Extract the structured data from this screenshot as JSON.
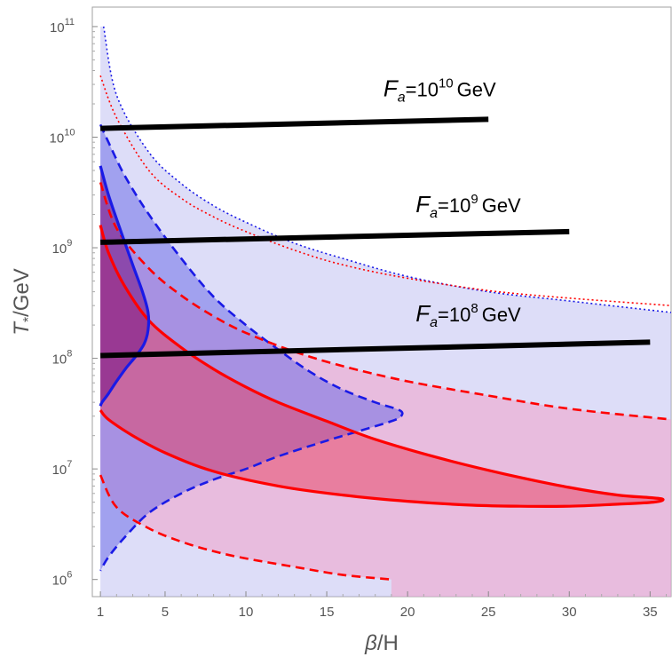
{
  "chart_data": {
    "type": "area",
    "title": "",
    "xlabel": "β/H",
    "ylabel": "T*/GeV",
    "xlim": [
      0.5,
      36.3
    ],
    "ylim": [
      700000,
      150000000000
    ],
    "yscale": "log",
    "grid": false,
    "x_ticks": [
      1,
      5,
      10,
      15,
      20,
      25,
      30,
      35
    ],
    "y_ticks": [
      {
        "value": 1000000,
        "base": "10",
        "exp": "6"
      },
      {
        "value": 10000000,
        "base": "10",
        "exp": "7"
      },
      {
        "value": 100000000,
        "base": "10",
        "exp": "8"
      },
      {
        "value": 1000000000,
        "base": "10",
        "exp": "9"
      },
      {
        "value": 10000000000,
        "base": "10",
        "exp": "10"
      },
      {
        "value": 100000000000,
        "base": "10",
        "exp": "11"
      }
    ],
    "axis_label_parts": {
      "x": {
        "symbol": "β",
        "rest": "/H"
      },
      "y": {
        "symbol": "T",
        "sub": "*",
        "rest": "/GeV"
      }
    },
    "colors": {
      "blue": "#1a1ae6",
      "red": "#ff0000",
      "black": "#000000",
      "region_light_blue": "#b4b4f0",
      "region_light_red": "#f0a0c8",
      "region_mid_blue": "#6666e6",
      "region_mid_red": "#e84060",
      "region_overlap": "#7a1a8a"
    },
    "lines": [
      {
        "name": "blue-dotted",
        "color": "#1a1ae6",
        "style": "dotted",
        "x": [
          1.2,
          2,
          4,
          6,
          8,
          10,
          13,
          16,
          20,
          25,
          30,
          36.3
        ],
        "y": [
          100000000000.0,
          24000000000.0,
          7300000000.0,
          3800000000.0,
          2400000000.0,
          1700000000.0,
          1100000000.0,
          800000000.0,
          550000000.0,
          400000000.0,
          330000000.0,
          260000000.0
        ]
      },
      {
        "name": "red-dotted",
        "color": "#ff0000",
        "style": "dotted",
        "x": [
          1,
          2,
          4,
          6,
          8,
          10,
          13,
          16,
          20,
          25,
          30,
          36.3
        ],
        "y": [
          36000000000.0,
          15000000000.0,
          5000000000.0,
          2800000000.0,
          1900000000.0,
          1400000000.0,
          950000000.0,
          700000000.0,
          530000000.0,
          410000000.0,
          350000000.0,
          300000000.0
        ]
      },
      {
        "name": "blue-dashed",
        "color": "#1a1ae6",
        "style": "dashed",
        "x": [
          1,
          1.5,
          2.5,
          4,
          6,
          8,
          10,
          12,
          14,
          16,
          18,
          19.5,
          19.6,
          19,
          17,
          15,
          12,
          10,
          8,
          6,
          4,
          2.5,
          1.5,
          1
        ],
        "y": [
          13000000000.0,
          9000000000.0,
          4500000000.0,
          2000000000.0,
          800000000.0,
          360000000.0,
          200000000.0,
          120000000.0,
          75000000.0,
          52000000.0,
          40000000.0,
          34000000.0,
          30000000.0,
          27000000.0,
          22000000.0,
          18000000.0,
          13000000.0,
          10000000.0,
          8000000.0,
          6000000.0,
          4000000.0,
          2400000.0,
          1600000.0,
          1200000.0
        ]
      },
      {
        "name": "red-dashed-upper",
        "color": "#ff0000",
        "style": "dashed",
        "x": [
          1,
          2,
          4,
          6,
          8,
          10,
          13,
          16,
          20,
          25,
          30,
          36.3
        ],
        "y": [
          3900000000.0,
          1500000000.0,
          650000000.0,
          370000000.0,
          240000000.0,
          170000000.0,
          115000000.0,
          85000000.0,
          62000000.0,
          46000000.0,
          35000000.0,
          28000000.0
        ]
      },
      {
        "name": "red-dashed-lower",
        "color": "#ff0000",
        "style": "dashed",
        "x": [
          1,
          2,
          4,
          6,
          8,
          10,
          13,
          16,
          19
        ],
        "y": [
          8800000.0,
          4500000.0,
          2900000.0,
          2200000.0,
          1800000.0,
          1550000.0,
          1300000.0,
          1100000.0,
          1000000.0
        ]
      },
      {
        "name": "red-solid",
        "color": "#ff0000",
        "style": "solid",
        "x": [
          1,
          1.5,
          2.5,
          4,
          6,
          8,
          10,
          12,
          15,
          18,
          22,
          26,
          30,
          33,
          35,
          35.8,
          35.2,
          33,
          30,
          27,
          24,
          20,
          16,
          12,
          8,
          5,
          3,
          1.5,
          1
        ],
        "y": [
          1600000000.0,
          900000000.0,
          450000000.0,
          220000000.0,
          125000000.0,
          80000000.0,
          55000000.0,
          40000000.0,
          27000000.0,
          18500000.0,
          12500000.0,
          9000000.0,
          6800000.0,
          5800000.0,
          5500000.0,
          5300000.0,
          5000000.0,
          4800000.0,
          4600000.0,
          4600000.0,
          4700000.0,
          5100000.0,
          5800000.0,
          7000000.0,
          9500000.0,
          14000000.0,
          20000000.0,
          28000000.0,
          34000000.0
        ]
      },
      {
        "name": "blue-solid",
        "color": "#1a1ae6",
        "style": "solid",
        "x": [
          1,
          1.5,
          2.2,
          3,
          3.6,
          3.95,
          3.95,
          3.7,
          3.2,
          2.6,
          2.0,
          1.5,
          1.1,
          1
        ],
        "y": [
          5500000000.0,
          3000000000.0,
          1500000000.0,
          700000000.0,
          400000000.0,
          260000000.0,
          180000000.0,
          135000000.0,
          105000000.0,
          82000000.0,
          62000000.0,
          48000000.0,
          40000000.0,
          37000000.0
        ]
      }
    ],
    "black_lines": [
      {
        "x": [
          1,
          25
        ],
        "y": [
          12000000000.0,
          14500000000.0
        ],
        "label_base": "10",
        "label_exp": "10",
        "label_x": 18.5,
        "label_y": 23500000000.0
      },
      {
        "x": [
          1,
          30
        ],
        "y": [
          1120000000.0,
          1400000000.0
        ],
        "label_base": "10",
        "label_exp": "9",
        "label_x": 20.5,
        "label_y": 2100000000.0
      },
      {
        "x": [
          1,
          35
        ],
        "y": [
          106000000.0,
          140000000.0
        ],
        "label_base": "10",
        "label_exp": "8",
        "label_x": 20.5,
        "label_y": 215000000.0
      }
    ],
    "annotation_parts": {
      "symbol": "F",
      "sub": "a",
      "eq": "=",
      "unit": "GeV"
    }
  }
}
